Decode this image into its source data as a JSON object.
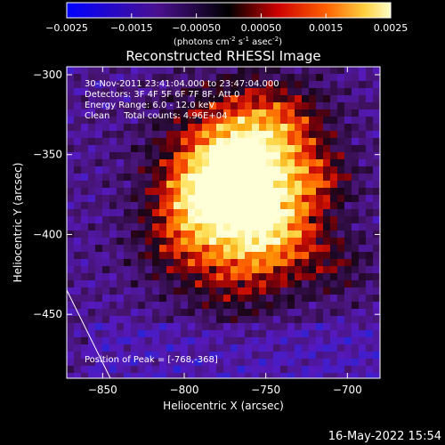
{
  "colorbar": {
    "ticks": [
      "-0.0025",
      "-0.0015",
      "-0.00050",
      "0.00050",
      "0.0015",
      "0.0025"
    ],
    "units_main": "(photons cm",
    "units_exp1": "-2",
    "units_mid": " s",
    "units_exp2": "-1",
    "units_end": " asec",
    "units_exp3": "-2",
    "units_close": ")"
  },
  "annotations": {
    "line1": "30-Nov-2011 23:41:04.000 to 23:47:04.000",
    "line2": "Detectors: 3F 4F 5F 6F 7F 8F, Att 0",
    "line3": "Energy Range: 6.0 - 12.0 keV",
    "line4": "Clean     Total counts: 4.96E+04",
    "peak": "Position of Peak = [-768,-368]"
  },
  "footer": {
    "date": "16-May-2022 15:54"
  },
  "chart_data": {
    "type": "heatmap",
    "title": "Reconstructed RHESSI Image",
    "xlabel": "Heliocentric X (arcsec)",
    "ylabel": "Heliocentric Y (arcsec)",
    "xlim": [
      -872,
      -680
    ],
    "ylim": [
      -490,
      -295
    ],
    "xticks": [
      -850,
      -800,
      -750,
      -700
    ],
    "yticks": [
      -450,
      -400,
      -350,
      -300
    ],
    "xtick_labels": [
      "−850",
      "−800",
      "−750",
      "−700"
    ],
    "ytick_labels": [
      "−450",
      "−400",
      "−350",
      "−300"
    ],
    "colorbar_range": [
      -0.0025,
      0.0025
    ],
    "peak_position": [
      -768,
      -368
    ],
    "colors": {
      "low": "#0000ff",
      "mid": "#000000",
      "high_1": "#cc0000",
      "high_2": "#ffa000",
      "high_3": "#ffffc8"
    }
  }
}
